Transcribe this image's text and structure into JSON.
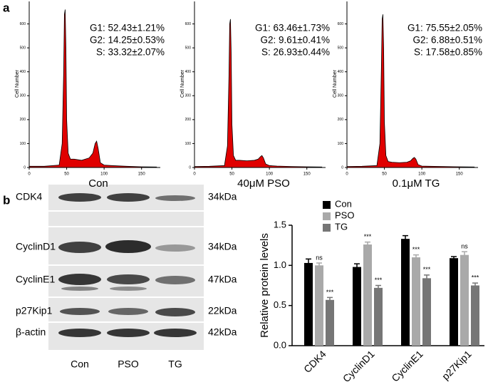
{
  "panel_labels": [
    "a",
    "b"
  ],
  "chart_data": [
    {
      "type": "area",
      "x_label": "Con",
      "y_label": "Cell Number",
      "stats": [
        "G1: 52.43±1.21%",
        "G2: 14.25±0.53%",
        "S: 33.32±2.07%"
      ],
      "color": "#e00000",
      "x": [
        0,
        20,
        40,
        44,
        46,
        47,
        48,
        49,
        50,
        52,
        55,
        60,
        70,
        80,
        85,
        88,
        90,
        92,
        95,
        100,
        110,
        130,
        150,
        170
      ],
      "values": [
        5,
        5,
        10,
        100,
        400,
        640,
        660,
        500,
        200,
        60,
        35,
        35,
        30,
        40,
        60,
        100,
        110,
        80,
        20,
        10,
        8,
        5,
        3,
        2
      ],
      "xlim": [
        0,
        175
      ],
      "ylim": [
        0,
        700
      ],
      "xticks": [
        0,
        50,
        100,
        150
      ],
      "yticks": [
        0,
        100,
        200,
        300,
        400,
        500,
        600
      ]
    },
    {
      "type": "area",
      "x_label": "40μM PSO",
      "y_label": "Cell Number",
      "stats": [
        "G1: 63.46±1.73%",
        "G2: 9.61±0.41%",
        "S: 26.93±0.44%"
      ],
      "color": "#e00000",
      "x": [
        0,
        20,
        40,
        44,
        46,
        47,
        48,
        49,
        50,
        52,
        55,
        60,
        70,
        80,
        85,
        88,
        90,
        92,
        95,
        100,
        110,
        130,
        150,
        170
      ],
      "values": [
        4,
        5,
        8,
        90,
        380,
        600,
        620,
        480,
        180,
        50,
        30,
        30,
        28,
        30,
        35,
        45,
        50,
        40,
        15,
        8,
        6,
        4,
        3,
        2
      ],
      "xlim": [
        0,
        175
      ],
      "ylim": [
        0,
        700
      ],
      "xticks": [
        0,
        50,
        100,
        150
      ],
      "yticks": [
        0,
        100,
        200,
        300,
        400,
        500,
        600
      ]
    },
    {
      "type": "area",
      "x_label": "0.1μM TG",
      "y_label": "Cell Number",
      "stats": [
        "G1: 75.55±2.05%",
        "G2: 6.88±0.51%",
        "S: 17.58±0.85%"
      ],
      "color": "#e00000",
      "x": [
        0,
        20,
        40,
        44,
        46,
        47,
        48,
        49,
        50,
        52,
        55,
        60,
        70,
        80,
        85,
        88,
        90,
        92,
        95,
        100,
        110,
        130,
        150,
        170
      ],
      "values": [
        4,
        5,
        8,
        100,
        420,
        620,
        640,
        500,
        190,
        50,
        25,
        22,
        20,
        22,
        28,
        38,
        42,
        35,
        12,
        6,
        5,
        4,
        3,
        2
      ],
      "xlim": [
        0,
        175
      ],
      "ylim": [
        0,
        700
      ],
      "xticks": [
        0,
        50,
        100,
        150
      ],
      "yticks": [
        0,
        100,
        200,
        300,
        400,
        500,
        600
      ]
    },
    {
      "type": "bar",
      "y_label": "Relative protein levels",
      "categories": [
        "CDK4",
        "CyclinD1",
        "CyclinE1",
        "p27Kip1"
      ],
      "legend": "top-left",
      "series": [
        {
          "name": "Con",
          "color": "#000000",
          "values": [
            1.03,
            0.98,
            1.33,
            1.09
          ],
          "errors": [
            0.05,
            0.04,
            0.04,
            0.02
          ]
        },
        {
          "name": "PSO",
          "color": "#a9a9a9",
          "values": [
            1.0,
            1.26,
            1.1,
            1.13
          ],
          "errors": [
            0.03,
            0.03,
            0.03,
            0.04
          ],
          "annotations": [
            "ns",
            "***",
            "***",
            "ns"
          ]
        },
        {
          "name": "TG",
          "color": "#767676",
          "values": [
            0.57,
            0.72,
            0.84,
            0.75
          ],
          "errors": [
            0.03,
            0.03,
            0.04,
            0.03
          ],
          "annotations": [
            "***",
            "***",
            "***",
            "***"
          ]
        }
      ],
      "ylim": [
        0,
        1.5
      ],
      "yticks": [
        {
          "value": 0,
          "label": "0.0"
        },
        {
          "value": 0.5,
          "label": "0.5"
        },
        {
          "value": 1,
          "label": "1.0"
        },
        {
          "value": 1.5,
          "label": "1.5"
        }
      ]
    }
  ],
  "blot": {
    "proteins": [
      "CDK4",
      "CyclinD1",
      "CyclinE1",
      "p27Kip1",
      "β-actin"
    ],
    "sizes": [
      "34kDa",
      "34kDa",
      "47kDa",
      "22kDa",
      "42kDa"
    ],
    "lanes": [
      "Con",
      "PSO",
      "TG"
    ]
  }
}
